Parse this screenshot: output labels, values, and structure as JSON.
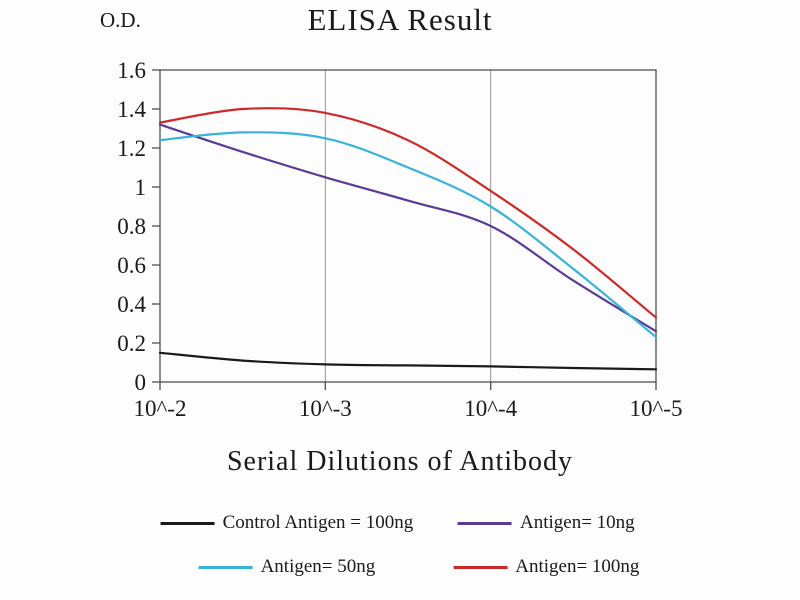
{
  "chart_data": {
    "type": "line",
    "title": "ELISA Result",
    "y_axis_label": "O.D.",
    "x_axis_label": "Serial Dilutions of Antibody",
    "x_tick_labels": [
      "10^-2",
      "10^-3",
      "10^-4",
      "10^-5"
    ],
    "x_tick_exponents": [
      -2,
      -3,
      -4,
      -5
    ],
    "y_tick_labels": [
      "0",
      "0.2",
      "0.4",
      "0.6",
      "0.8",
      "1",
      "1.2",
      "1.4",
      "1.6"
    ],
    "ylim": [
      0,
      1.6
    ],
    "grid": "vertical-only",
    "legend_position": "bottom",
    "sample_x_exponents": [
      -2,
      -2.5,
      -3,
      -3.5,
      -4,
      -4.5,
      -5
    ],
    "series": [
      {
        "name": "Control Antigen = 100ng",
        "color": "#1a1a1a",
        "values": [
          0.15,
          0.11,
          0.09,
          0.085,
          0.08,
          0.072,
          0.065
        ]
      },
      {
        "name": "Antigen= 10ng",
        "color": "#5a3b96",
        "values": [
          1.32,
          1.18,
          1.05,
          0.93,
          0.8,
          0.52,
          0.26
        ]
      },
      {
        "name": "Antigen= 50ng",
        "color": "#38b4d8",
        "values": [
          1.24,
          1.28,
          1.25,
          1.1,
          0.9,
          0.58,
          0.23
        ]
      },
      {
        "name": "Antigen= 100ng",
        "color": "#cc2a2a",
        "values": [
          1.33,
          1.4,
          1.38,
          1.24,
          0.98,
          0.68,
          0.33
        ]
      }
    ]
  }
}
